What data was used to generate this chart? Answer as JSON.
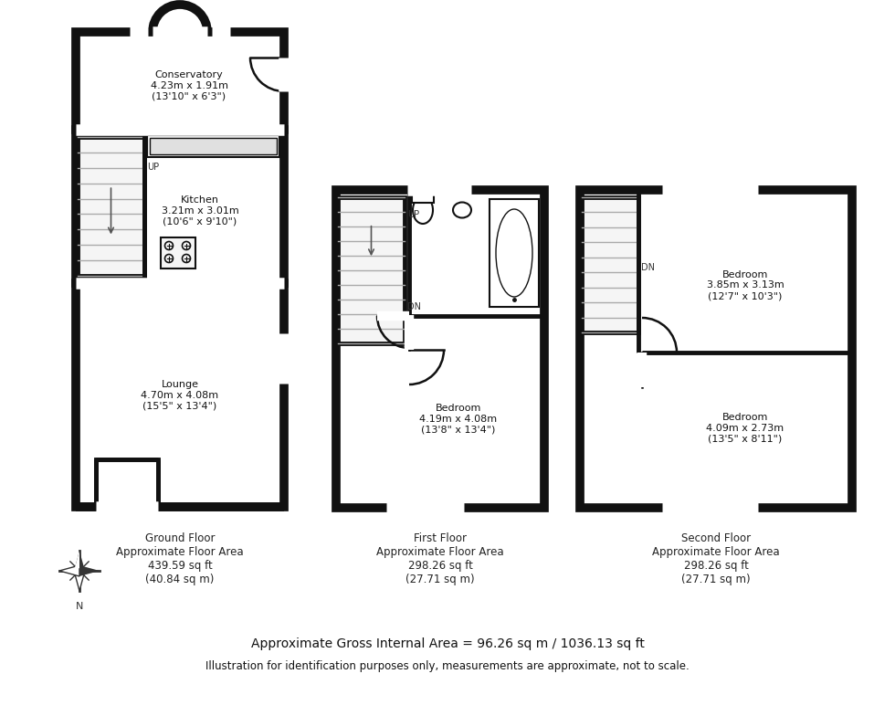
{
  "bg_color": "#ffffff",
  "wall_color": "#111111",
  "lw_outer": 7.0,
  "lw_inner": 3.5,
  "ground_floor_label": "Ground Floor\nApproximate Floor Area\n439.59 sq ft\n(40.84 sq m)",
  "first_floor_label": "First Floor\nApproximate Floor Area\n298.26 sq ft\n(27.71 sq m)",
  "second_floor_label": "Second Floor\nApproximate Floor Area\n298.26 sq ft\n(27.71 sq m)",
  "bottom_line1": "Approximate Gross Internal Area = 96.26 sq m / 1036.13 sq ft",
  "bottom_line2": "Illustration for identification purposes only, measurements are approximate, not to scale.",
  "conservatory_label": "Conservatory\n4.23m x 1.91m\n(13'10\" x 6'3\")",
  "kitchen_label": "Kitchen\n3.21m x 3.01m\n(10'6\" x 9'10\")",
  "lounge_label": "Lounge\n4.70m x 4.08m\n(15'5\" x 13'4\")",
  "bedroom1_label": "Bedroom\n4.19m x 4.08m\n(13'8\" x 13'4\")",
  "bedroom2_label": "Bedroom\n3.85m x 3.13m\n(12'7\" x 10'3\")",
  "bedroom3_label": "Bedroom\n4.09m x 2.73m\n(13'5\" x 8'11\")"
}
